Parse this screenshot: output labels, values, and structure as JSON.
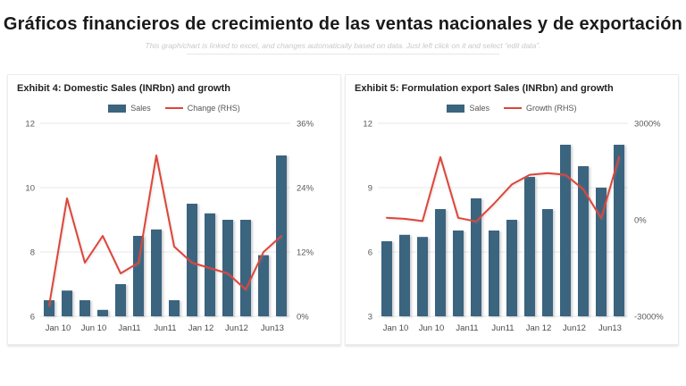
{
  "page": {
    "title": "Gráficos financieros de crecimiento de las ventas nacionales y de exportación",
    "subtitle": "This graph/chart is linked to excel, and changes automatically based on data. Just left click on it and select “edit data”."
  },
  "colors": {
    "bar": "#3B647F",
    "line": "#DF4539",
    "grid": "#e7e7e7",
    "axis_text": "#595959"
  },
  "chart_data": [
    {
      "type": "bar",
      "title": "Exhibit 4: Domestic Sales (INRbn) and growth",
      "legend": [
        {
          "label": "Sales",
          "swatch": "bar"
        },
        {
          "label": "Change (RHS)",
          "swatch": "line"
        }
      ],
      "categories": [
        "Jan 10",
        "Jun 10",
        "Jan11",
        "Jun11",
        "Jan 12",
        "Jun12",
        "Jun13"
      ],
      "bars": {
        "name": "Sales",
        "axis": "left",
        "values": [
          6.5,
          6.8,
          6.5,
          6.2,
          7.0,
          8.5,
          8.7,
          6.5,
          9.5,
          9.2,
          9.0,
          9.0,
          7.9,
          11.0
        ]
      },
      "line": {
        "name": "Change (RHS)",
        "axis": "right",
        "values_pct": [
          2,
          22,
          10,
          15,
          8,
          10,
          30,
          13,
          10,
          9,
          8,
          5,
          12,
          15
        ]
      },
      "y_left": {
        "min": 6,
        "max": 12,
        "ticks": [
          6,
          8,
          10,
          12
        ]
      },
      "y_right": {
        "min": 0,
        "max": 36,
        "ticks": [
          {
            "v": 0,
            "label": "0%"
          },
          {
            "v": 12,
            "label": "12%"
          },
          {
            "v": 24,
            "label": "24%"
          },
          {
            "v": 36,
            "label": "36%"
          }
        ]
      },
      "layout": {
        "grid": true,
        "legend_position": "top",
        "bars_per_category_label": 2
      }
    },
    {
      "type": "bar",
      "title": "Exhibit 5: Formulation export Sales (INRbn) and growth",
      "legend": [
        {
          "label": "Sales",
          "swatch": "bar"
        },
        {
          "label": "Growth (RHS)",
          "swatch": "line"
        }
      ],
      "categories": [
        "Jan 10",
        "Jun 10",
        "Jan11",
        "Jun11",
        "Jan 12",
        "Jun12",
        "Jun13"
      ],
      "bars": {
        "name": "Sales",
        "axis": "left",
        "values": [
          6.5,
          6.8,
          6.7,
          8.0,
          7.0,
          8.5,
          7.0,
          7.5,
          9.5,
          8.0,
          11.0,
          10.0,
          9.0,
          11.0
        ]
      },
      "line": {
        "name": "Growth (RHS)",
        "axis": "right",
        "values_pct": [
          60,
          30,
          -40,
          1950,
          60,
          -50,
          500,
          1100,
          1400,
          1450,
          1400,
          950,
          50,
          1950
        ]
      },
      "y_left": {
        "min": 3,
        "max": 12,
        "ticks": [
          3,
          6,
          9,
          12
        ]
      },
      "y_right": {
        "min": -3000,
        "max": 3000,
        "ticks": [
          {
            "v": -3000,
            "label": "-3000%"
          },
          {
            "v": 0,
            "label": "0%"
          },
          {
            "v": 3000,
            "label": "3000%"
          }
        ]
      },
      "layout": {
        "grid": true,
        "legend_position": "top",
        "bars_per_category_label": 2
      }
    }
  ]
}
